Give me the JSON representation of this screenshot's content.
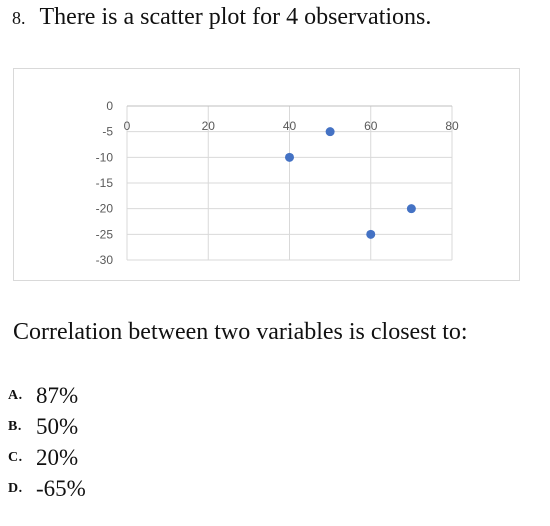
{
  "question": {
    "number": "8.",
    "text": "There is a scatter plot for 4 observations."
  },
  "chart_data": {
    "type": "scatter",
    "title": "",
    "xlabel": "",
    "ylabel": "",
    "xlim": [
      0,
      80
    ],
    "ylim": [
      -30,
      0
    ],
    "x_ticks": [
      0,
      20,
      40,
      60,
      80
    ],
    "y_ticks": [
      0,
      -5,
      -10,
      -15,
      -20,
      -25,
      -30
    ],
    "grid": true,
    "points": [
      {
        "x": 40,
        "y": -10
      },
      {
        "x": 50,
        "y": -5
      },
      {
        "x": 60,
        "y": -25
      },
      {
        "x": 70,
        "y": -20
      }
    ],
    "marker_color": "#4472c4"
  },
  "prompt": "Correlation between two variables is closest to:",
  "options": [
    {
      "letter": "A.",
      "text": "87%"
    },
    {
      "letter": "B.",
      "text": "50%"
    },
    {
      "letter": "C.",
      "text": "20%"
    },
    {
      "letter": "D.",
      "text": "-65%"
    }
  ]
}
